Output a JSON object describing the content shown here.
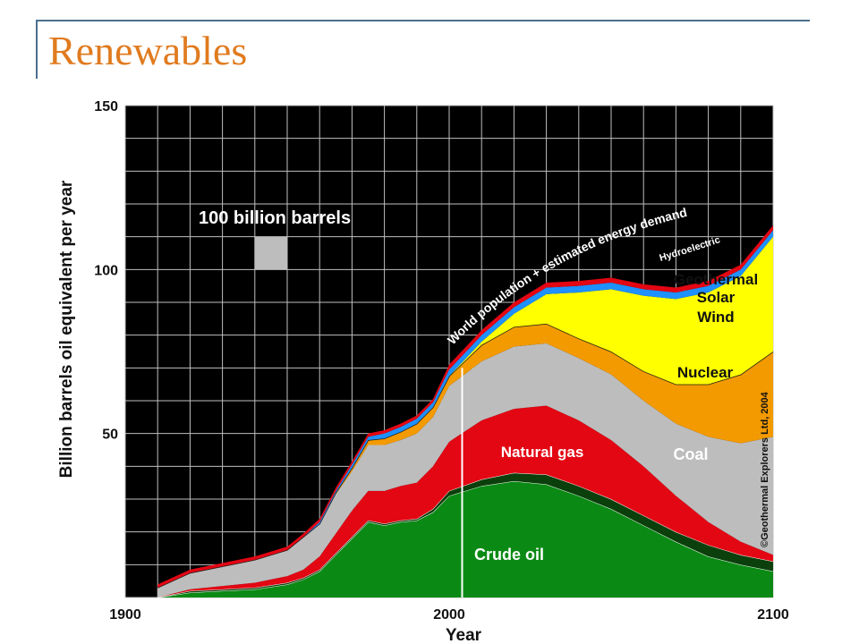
{
  "slide": {
    "title": "Renewables"
  },
  "chart_data": {
    "type": "area",
    "stacked": true,
    "xlabel": "Year",
    "ylabel": "Billion barrels oil equivalent per year",
    "xlim": [
      1900,
      2100
    ],
    "ylim": [
      0,
      150
    ],
    "x_ticks": [
      1900,
      2000,
      2100
    ],
    "y_ticks": [
      50,
      100,
      150
    ],
    "grid": true,
    "x": [
      1910,
      1920,
      1930,
      1940,
      1950,
      1955,
      1960,
      1965,
      1970,
      1975,
      1980,
      1985,
      1990,
      1995,
      2000,
      2010,
      2020,
      2030,
      2040,
      2050,
      2060,
      2070,
      2080,
      2090,
      2100
    ],
    "series": [
      {
        "name": "Crude oil",
        "color": "#0a8a14",
        "values": [
          0,
          1.5,
          2,
          2.5,
          4,
          5.5,
          8,
          13,
          18,
          23,
          22,
          23,
          23.5,
          26,
          31,
          34,
          35.5,
          34.5,
          31,
          27,
          22,
          17,
          12.5,
          10,
          8
        ]
      },
      {
        "name": "",
        "color": "#0b3f0b",
        "values": [
          0,
          0.5,
          0.5,
          0.5,
          0.5,
          0.5,
          0.5,
          0.5,
          0.5,
          0.5,
          0.5,
          0.5,
          0.5,
          1,
          1.5,
          2,
          2.5,
          3,
          3,
          3,
          3,
          3,
          3.5,
          3,
          3
        ]
      },
      {
        "name": "Natural gas",
        "color": "#e30613",
        "values": [
          0,
          0.5,
          1,
          1.5,
          2,
          2.5,
          4,
          6,
          8,
          9,
          10,
          10.5,
          11,
          13,
          15,
          18,
          19.5,
          21,
          20,
          18,
          15,
          11,
          7,
          4,
          2
        ]
      },
      {
        "name": "Coal",
        "color": "#bdbdbd",
        "values": [
          3,
          5,
          6,
          7,
          8,
          10,
          10,
          12,
          12,
          14,
          14,
          14,
          15,
          15,
          17,
          18,
          19,
          19,
          19,
          20,
          20,
          22,
          26,
          30,
          36
        ]
      },
      {
        "name": "Nuclear",
        "color": "#f39a00",
        "values": [
          0,
          0,
          0,
          0,
          0,
          0,
          0,
          0.5,
          1,
          1.5,
          2,
          2.5,
          3,
          3,
          3,
          5,
          6,
          6,
          6,
          7,
          9,
          12,
          16,
          21,
          26
        ]
      },
      {
        "name": "Geothermal Solar Wind",
        "color": "#ffff00",
        "values": [
          0,
          0,
          0,
          0,
          0,
          0,
          0,
          0,
          0,
          0,
          0,
          0,
          0,
          0,
          0,
          1,
          4,
          9,
          14,
          19,
          23,
          26,
          28,
          30,
          35
        ]
      },
      {
        "name": "Hydroelectric",
        "color": "#1e90ff",
        "values": [
          0,
          0,
          0,
          0,
          0,
          0,
          0.5,
          0.5,
          1,
          1,
          1.5,
          1.5,
          1.5,
          1.5,
          2,
          2,
          2,
          2,
          2,
          2,
          2,
          2,
          2,
          2,
          2
        ]
      },
      {
        "name": "World population + estimated energy demand",
        "color": "#e30613",
        "values": [
          1,
          1,
          1,
          1,
          1,
          1,
          1,
          1,
          1,
          1,
          1,
          1,
          1,
          1,
          1.5,
          1.5,
          1.5,
          1.5,
          1.5,
          1.5,
          1.5,
          1.5,
          1.5,
          1.5,
          1.5
        ]
      }
    ],
    "annotations": {
      "legend_box": "100 billion barrels",
      "demand_curve": "World population + estimated energy demand",
      "hydro": "Hydroelectric",
      "renew_1": "Geothermal",
      "renew_2": "Solar",
      "renew_3": "Wind",
      "nuclear": "Nuclear",
      "coal": "Coal",
      "gas": "Natural gas",
      "oil": "Crude oil",
      "copyright": "©Geothermal Explorers Ltd, 2004"
    },
    "marker_year": 2004
  }
}
